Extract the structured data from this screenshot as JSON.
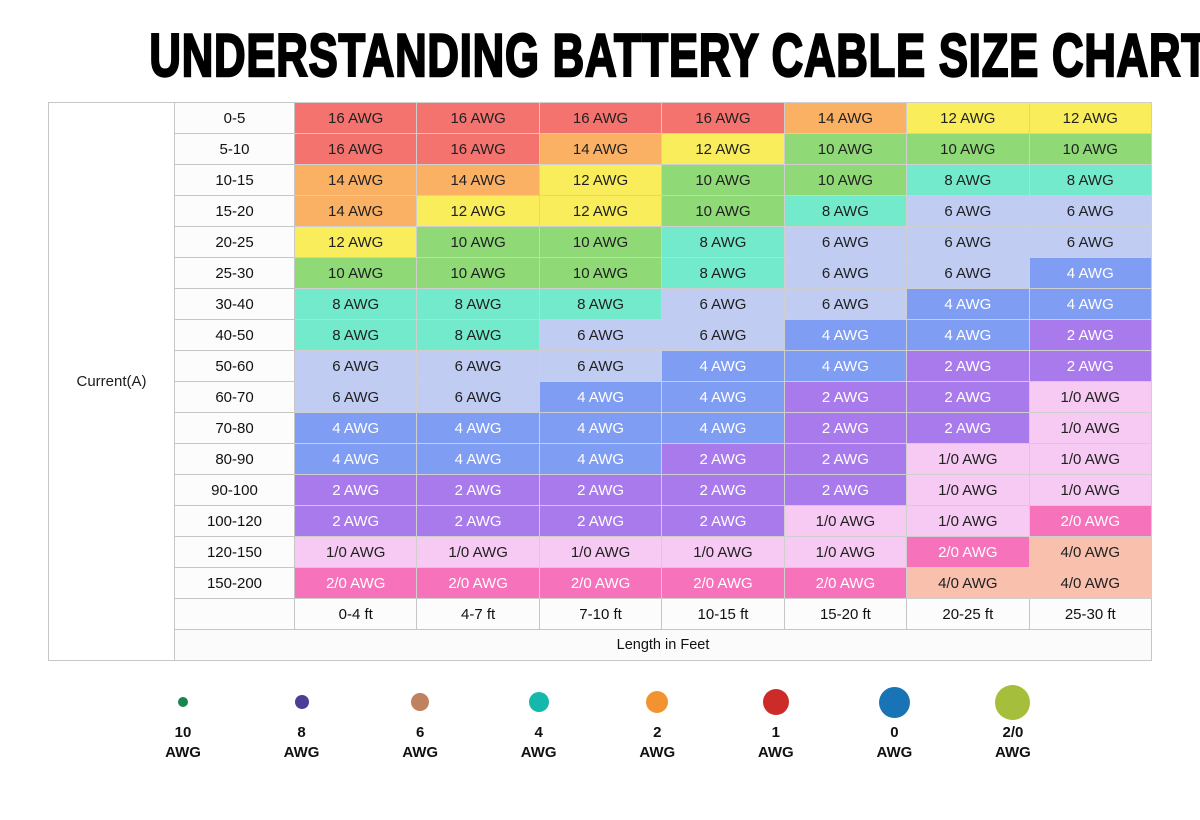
{
  "chart_data": {
    "type": "table",
    "title": "UNDERSTANDING BATTERY CABLE SIZE CHART",
    "row_axis_label": "Current(A)",
    "col_axis_label": "Length in Feet",
    "columns": [
      "0-4 ft",
      "4-7 ft",
      "7-10 ft",
      "10-15 ft",
      "15-20 ft",
      "20-25 ft",
      "25-30 ft"
    ],
    "rows": [
      {
        "current": "0-5",
        "cells": [
          "16 AWG",
          "16 AWG",
          "16 AWG",
          "16 AWG",
          "14 AWG",
          "12 AWG",
          "12 AWG"
        ]
      },
      {
        "current": "5-10",
        "cells": [
          "16 AWG",
          "16 AWG",
          "14 AWG",
          "12 AWG",
          "10 AWG",
          "10 AWG",
          "10 AWG"
        ]
      },
      {
        "current": "10-15",
        "cells": [
          "14 AWG",
          "14 AWG",
          "12 AWG",
          "10 AWG",
          "10 AWG",
          "8 AWG",
          "8 AWG"
        ]
      },
      {
        "current": "15-20",
        "cells": [
          "14 AWG",
          "12 AWG",
          "12 AWG",
          "10 AWG",
          "8 AWG",
          "6 AWG",
          "6 AWG"
        ]
      },
      {
        "current": "20-25",
        "cells": [
          "12 AWG",
          "10 AWG",
          "10 AWG",
          "8 AWG",
          "6 AWG",
          "6 AWG",
          "6 AWG"
        ]
      },
      {
        "current": "25-30",
        "cells": [
          "10 AWG",
          "10 AWG",
          "10 AWG",
          "8 AWG",
          "6 AWG",
          "6 AWG",
          "4 AWG"
        ]
      },
      {
        "current": "30-40",
        "cells": [
          "8 AWG",
          "8 AWG",
          "8 AWG",
          "6 AWG",
          "6 AWG",
          "4 AWG",
          "4 AWG"
        ]
      },
      {
        "current": "40-50",
        "cells": [
          "8 AWG",
          "8 AWG",
          "6 AWG",
          "6 AWG",
          "4 AWG",
          "4 AWG",
          "2 AWG"
        ]
      },
      {
        "current": "50-60",
        "cells": [
          "6 AWG",
          "6 AWG",
          "6 AWG",
          "4 AWG",
          "4 AWG",
          "2 AWG",
          "2 AWG"
        ]
      },
      {
        "current": "60-70",
        "cells": [
          "6 AWG",
          "6 AWG",
          "4 AWG",
          "4 AWG",
          "2 AWG",
          "2 AWG",
          "1/0 AWG"
        ]
      },
      {
        "current": "70-80",
        "cells": [
          "4 AWG",
          "4 AWG",
          "4 AWG",
          "4 AWG",
          "2 AWG",
          "2 AWG",
          "1/0 AWG"
        ]
      },
      {
        "current": "80-90",
        "cells": [
          "4 AWG",
          "4 AWG",
          "4 AWG",
          "2 AWG",
          "2 AWG",
          "1/0 AWG",
          "1/0 AWG"
        ]
      },
      {
        "current": "90-100",
        "cells": [
          "2 AWG",
          "2 AWG",
          "2 AWG",
          "2 AWG",
          "2 AWG",
          "1/0 AWG",
          "1/0 AWG"
        ]
      },
      {
        "current": "100-120",
        "cells": [
          "2 AWG",
          "2 AWG",
          "2 AWG",
          "2 AWG",
          "1/0 AWG",
          "1/0 AWG",
          "2/0 AWG"
        ]
      },
      {
        "current": "120-150",
        "cells": [
          "1/0 AWG",
          "1/0 AWG",
          "1/0 AWG",
          "1/0 AWG",
          "1/0 AWG",
          "2/0 AWG",
          "4/0 AWG"
        ]
      },
      {
        "current": "150-200",
        "cells": [
          "2/0 AWG",
          "2/0 AWG",
          "2/0 AWG",
          "2/0 AWG",
          "2/0 AWG",
          "4/0 AWG",
          "4/0 AWG"
        ]
      }
    ],
    "cell_colors": {
      "16 AWG": {
        "bg": "#F4736F",
        "text": "#212121"
      },
      "14 AWG": {
        "bg": "#FBB164",
        "text": "#212121"
      },
      "12 AWG": {
        "bg": "#F9ED5C",
        "text": "#212121"
      },
      "10 AWG": {
        "bg": "#8FD977",
        "text": "#212121"
      },
      "8 AWG": {
        "bg": "#74EACC",
        "text": "#212121"
      },
      "6 AWG": {
        "bg": "#C1CCF3",
        "text": "#212121"
      },
      "4 AWG": {
        "bg": "#7F9DF2",
        "text": "#FFFFFF"
      },
      "2 AWG": {
        "bg": "#A97AEC",
        "text": "#FFFFFF"
      },
      "1/0 AWG": {
        "bg": "#F6CAF3",
        "text": "#212121"
      },
      "2/0 AWG": {
        "bg": "#F672BB",
        "text": "#FFFFFF"
      },
      "4/0 AWG": {
        "bg": "#F9C0AE",
        "text": "#212121"
      }
    },
    "legend": [
      {
        "size_label": "10",
        "unit_label": "AWG",
        "color": "#16854F",
        "diameter": 10
      },
      {
        "size_label": "8",
        "unit_label": "AWG",
        "color": "#4C3D96",
        "diameter": 14
      },
      {
        "size_label": "6",
        "unit_label": "AWG",
        "color": "#C0815E",
        "diameter": 18
      },
      {
        "size_label": "4",
        "unit_label": "AWG",
        "color": "#16B8AB",
        "diameter": 20
      },
      {
        "size_label": "2",
        "unit_label": "AWG",
        "color": "#F2932F",
        "diameter": 22
      },
      {
        "size_label": "1",
        "unit_label": "AWG",
        "color": "#CC2B29",
        "diameter": 26
      },
      {
        "size_label": "0",
        "unit_label": "AWG",
        "color": "#1874B5",
        "diameter": 31
      },
      {
        "size_label": "2/0",
        "unit_label": "AWG",
        "color": "#A5BE3B",
        "diameter": 35
      }
    ]
  }
}
